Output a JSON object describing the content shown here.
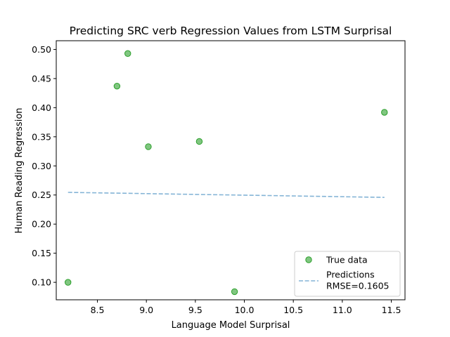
{
  "chart_data": {
    "type": "scatter",
    "title": "Predicting SRC verb Regression Values from LSTM Surprisal",
    "xlabel": "Language Model Surprisal",
    "ylabel": "Human Reading Regression",
    "xlim": [
      8.08,
      11.64
    ],
    "ylim": [
      0.07,
      0.515
    ],
    "xticks": [
      8.5,
      9.0,
      9.5,
      10.0,
      10.5,
      11.0,
      11.5
    ],
    "xtick_labels": [
      "8.5",
      "9.0",
      "9.5",
      "10.0",
      "10.5",
      "11.0",
      "11.5"
    ],
    "yticks": [
      0.1,
      0.15,
      0.2,
      0.25,
      0.3,
      0.35,
      0.4,
      0.45,
      0.5
    ],
    "ytick_labels": [
      "0.10",
      "0.15",
      "0.20",
      "0.25",
      "0.30",
      "0.35",
      "0.40",
      "0.45",
      "0.50"
    ],
    "grid": false,
    "legend_position": "lower right",
    "series": [
      {
        "name": "True data",
        "kind": "scatter",
        "color": "#2ca02c",
        "x": [
          8.2,
          8.7,
          8.81,
          9.02,
          9.54,
          9.9,
          11.43
        ],
        "y": [
          0.1,
          0.437,
          0.493,
          0.333,
          0.342,
          0.084,
          0.392
        ]
      },
      {
        "name": "Predictions\nRMSE=0.1605",
        "kind": "line",
        "color": "#1f77b4",
        "dash": true,
        "x": [
          8.2,
          8.7,
          8.81,
          9.02,
          9.54,
          9.9,
          11.43
        ],
        "y": [
          0.2545,
          0.2532,
          0.2529,
          0.2523,
          0.2509,
          0.25,
          0.2459
        ]
      }
    ]
  }
}
